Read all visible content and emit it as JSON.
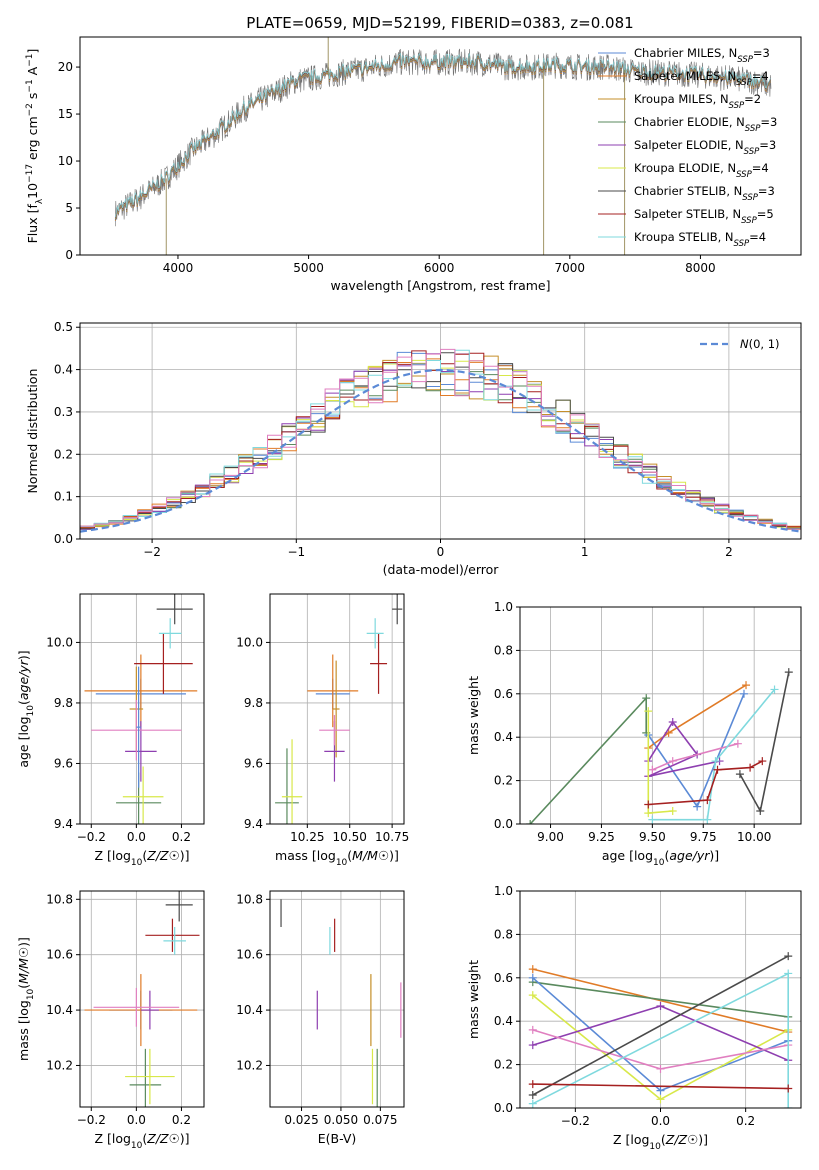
{
  "title": "PLATE=0659, MJD=52199, FIBERID=0383, z=0.081",
  "colors": {
    "Chabrier MILES": "#5b8ad6",
    "Salpeter MILES": "#e07b27",
    "Kroupa MILES": "#c58f2a",
    "Chabrier ELODIE": "#5a8a5e",
    "Salpeter ELODIE": "#8e3fb0",
    "Kroupa ELODIE": "#d8e84a",
    "Chabrier STELIB": "#4a4a4a",
    "Salpeter STELIB": "#a52020",
    "Kroupa STELIB": "#7fd9de",
    "extra_pink": "#e07fc0",
    "gauss": "#5b8ad6"
  },
  "chart_data": [
    {
      "id": "spectrum",
      "type": "line",
      "title": "PLATE=0659, MJD=52199, FIBERID=0383, z=0.081",
      "xlabel": "wavelength [Angstrom, rest frame]",
      "ylabel": "Flux [f_λ10^-17 erg cm^-2 s^-1 A^-1]",
      "xlim": [
        3250,
        8770
      ],
      "ylim": [
        0,
        23.2
      ],
      "xticks": [
        4000,
        5000,
        6000,
        7000,
        8000
      ],
      "yticks": [
        0,
        5,
        10,
        15,
        20
      ],
      "legend_position": "upper-right",
      "legend": [
        {
          "name": "Chabrier MILES",
          "sub": "3"
        },
        {
          "name": "Salpeter MILES",
          "sub": "4"
        },
        {
          "name": "Kroupa MILES",
          "sub": "2"
        },
        {
          "name": "Chabrier ELODIE",
          "sub": "3"
        },
        {
          "name": "Salpeter ELODIE",
          "sub": "3"
        },
        {
          "name": "Kroupa ELODIE",
          "sub": "4"
        },
        {
          "name": "Chabrier STELIB",
          "sub": "3"
        },
        {
          "name": "Salpeter STELIB",
          "sub": "5"
        },
        {
          "name": "Kroupa STELIB",
          "sub": "4"
        }
      ],
      "continuum": [
        [
          3520,
          4.5
        ],
        [
          3700,
          6
        ],
        [
          3900,
          8
        ],
        [
          4100,
          11
        ],
        [
          4300,
          13
        ],
        [
          4500,
          15.5
        ],
        [
          4700,
          17
        ],
        [
          4900,
          18.5
        ],
        [
          5100,
          19
        ],
        [
          5300,
          19.5
        ],
        [
          5500,
          20
        ],
        [
          5700,
          20.5
        ],
        [
          5900,
          20.5
        ],
        [
          6100,
          20.5
        ],
        [
          6300,
          20.5
        ],
        [
          6500,
          20
        ],
        [
          6700,
          20
        ],
        [
          6900,
          20.2
        ],
        [
          7100,
          20
        ],
        [
          7300,
          20
        ],
        [
          7500,
          19.5
        ],
        [
          7800,
          19.3
        ],
        [
          8100,
          19
        ],
        [
          8400,
          18.5
        ],
        [
          8540,
          18
        ]
      ],
      "spikes": [
        [
          5150,
          23.2
        ],
        [
          6800,
          0
        ],
        [
          7420,
          0
        ],
        [
          3910,
          0
        ]
      ],
      "noise_amplitude": 1.8
    },
    {
      "id": "residuals",
      "type": "histogram",
      "xlabel": "(data-model)/error",
      "ylabel": "Normed distribution",
      "xlim": [
        -2.5,
        2.5
      ],
      "ylim": [
        0,
        0.51
      ],
      "xticks": [
        -2,
        -1,
        0,
        1,
        2
      ],
      "yticks": [
        0.0,
        0.1,
        0.2,
        0.3,
        0.4,
        0.5
      ],
      "bin_width": 0.1,
      "gaussian_label": "N(0, 1)",
      "legend_position": "upper-right"
    },
    {
      "id": "age_vs_Z",
      "type": "errorbar",
      "xlabel": "Z [log10(Z/Z☉)]",
      "ylabel": "age [log10(age/yr)]",
      "xlim": [
        -0.25,
        0.3
      ],
      "ylim": [
        9.4,
        10.16
      ],
      "xticks": [
        -0.2,
        0.0,
        0.2
      ],
      "yticks": [
        9.4,
        9.6,
        9.8,
        10.0
      ],
      "points": [
        {
          "series": "Chabrier MILES",
          "x": 0.02,
          "xerr": 0.2,
          "y": 9.83,
          "yerr": 0.05
        },
        {
          "series": "Salpeter MILES",
          "x": 0.02,
          "xerr": 0.25,
          "y": 9.84,
          "yerr": 0.12
        },
        {
          "series": "Kroupa MILES",
          "x": 0.0,
          "xerr": 0.03,
          "y": 9.78,
          "yerr": 0.14
        },
        {
          "series": "Chabrier ELODIE",
          "x": 0.01,
          "xerr": 0.1,
          "y": 9.47,
          "yerr": 0.1
        },
        {
          "series": "Salpeter ELODIE",
          "x": 0.02,
          "xerr": 0.07,
          "y": 9.64,
          "yerr": 0.1
        },
        {
          "series": "Kroupa ELODIE",
          "x": 0.03,
          "xerr": 0.09,
          "y": 9.49,
          "yerr": 0.1
        },
        {
          "series": "Chabrier STELIB",
          "x": 0.17,
          "xerr": 0.08,
          "y": 10.11,
          "yerr": 0.05
        },
        {
          "series": "Salpeter STELIB",
          "x": 0.12,
          "xerr": 0.13,
          "y": 9.93,
          "yerr": 0.1
        },
        {
          "series": "Kroupa STELIB",
          "x": 0.15,
          "xerr": 0.05,
          "y": 10.03,
          "yerr": 0.05
        },
        {
          "series": "extra_pink",
          "x": 0.0,
          "xerr": 0.2,
          "y": 9.71,
          "yerr": 0.1
        },
        {
          "series": "Chabrier MILES",
          "x": 0.01,
          "xerr": 0.01,
          "y": 9.72,
          "yerr": 0.2
        }
      ]
    },
    {
      "id": "age_vs_mass",
      "type": "errorbar",
      "xlabel": "mass [log10(M/M☉)]",
      "xlim": [
        10.03,
        10.82
      ],
      "ylim": [
        9.4,
        10.16
      ],
      "xticks": [
        10.25,
        10.5,
        10.75
      ],
      "yticks": [
        9.4,
        9.6,
        9.8,
        10.0
      ],
      "points": [
        {
          "series": "Chabrier MILES",
          "x": 10.4,
          "xerr": 0.1,
          "y": 9.83,
          "yerr": 0.05
        },
        {
          "series": "Salpeter MILES",
          "x": 10.4,
          "xerr": 0.15,
          "y": 9.84,
          "yerr": 0.12
        },
        {
          "series": "Kroupa MILES",
          "x": 10.42,
          "xerr": 0.02,
          "y": 9.78,
          "yerr": 0.16
        },
        {
          "series": "Chabrier ELODIE",
          "x": 10.13,
          "xerr": 0.07,
          "y": 9.47,
          "yerr": 0.18
        },
        {
          "series": "Salpeter ELODIE",
          "x": 10.41,
          "xerr": 0.06,
          "y": 9.64,
          "yerr": 0.1
        },
        {
          "series": "Kroupa ELODIE",
          "x": 10.16,
          "xerr": 0.06,
          "y": 9.49,
          "yerr": 0.19
        },
        {
          "series": "Chabrier STELIB",
          "x": 10.78,
          "xerr": 0.03,
          "y": 10.11,
          "yerr": 0.05
        },
        {
          "series": "Salpeter STELIB",
          "x": 10.67,
          "xerr": 0.05,
          "y": 9.93,
          "yerr": 0.1
        },
        {
          "series": "Kroupa STELIB",
          "x": 10.65,
          "xerr": 0.05,
          "y": 10.03,
          "yerr": 0.05
        },
        {
          "series": "extra_pink",
          "x": 10.41,
          "xerr": 0.09,
          "y": 9.71,
          "yerr": 0.05
        }
      ]
    },
    {
      "id": "mass_weight_vs_age",
      "type": "line",
      "xlabel": "age [log10(age/yr)]",
      "ylabel": "mass weight",
      "xlim": [
        8.85,
        10.23
      ],
      "ylim": [
        0,
        1.0
      ],
      "xticks": [
        9.0,
        9.25,
        9.5,
        9.75,
        10.0
      ],
      "yticks": [
        0.0,
        0.2,
        0.4,
        0.6,
        0.8,
        1.0
      ],
      "series": [
        {
          "name": "Chabrier ELODIE",
          "points": [
            [
              8.9,
              0.0
            ],
            [
              9.47,
              0.58
            ],
            [
              9.47,
              0.42
            ]
          ]
        },
        {
          "name": "Salpeter MILES",
          "points": [
            [
              9.48,
              0.35
            ],
            [
              9.58,
              0.42
            ],
            [
              9.96,
              0.64
            ]
          ]
        },
        {
          "name": "Chabrier MILES",
          "points": [
            [
              9.48,
              0.41
            ],
            [
              9.72,
              0.08
            ],
            [
              9.95,
              0.6
            ]
          ]
        },
        {
          "name": "Salpeter ELODIE",
          "points": [
            [
              9.48,
              0.29
            ],
            [
              9.6,
              0.47
            ],
            [
              9.72,
              0.32
            ],
            [
              9.48,
              0.22
            ],
            [
              9.83,
              0.29
            ]
          ]
        },
        {
          "name": "extra_pink",
          "points": [
            [
              9.5,
              0.25
            ],
            [
              9.6,
              0.29
            ],
            [
              9.92,
              0.37
            ]
          ]
        },
        {
          "name": "Kroupa ELODIE",
          "points": [
            [
              9.48,
              0.52
            ],
            [
              9.48,
              0.05
            ],
            [
              9.6,
              0.06
            ]
          ]
        },
        {
          "name": "Kroupa STELIB",
          "points": [
            [
              9.5,
              0.02
            ],
            [
              9.77,
              0.02
            ],
            [
              9.81,
              0.29
            ],
            [
              10.1,
              0.62
            ]
          ]
        },
        {
          "name": "Chabrier STELIB",
          "points": [
            [
              9.93,
              0.23
            ],
            [
              10.03,
              0.06
            ],
            [
              10.17,
              0.7
            ]
          ]
        },
        {
          "name": "Salpeter STELIB",
          "points": [
            [
              9.48,
              0.09
            ],
            [
              9.77,
              0.11
            ],
            [
              9.82,
              0.25
            ],
            [
              9.98,
              0.26
            ],
            [
              10.04,
              0.29
            ]
          ]
        }
      ]
    },
    {
      "id": "mass_vs_Z",
      "type": "errorbar",
      "xlabel": "Z [log10(Z/Z☉)]",
      "ylabel": "mass [log10(M/M☉)]",
      "xlim": [
        -0.25,
        0.3
      ],
      "ylim": [
        10.05,
        10.83
      ],
      "xticks": [
        -0.2,
        0.0,
        0.2
      ],
      "yticks": [
        10.2,
        10.4,
        10.6,
        10.8
      ],
      "points": [
        {
          "series": "Chabrier MILES",
          "x": 0.02,
          "xerr": 0.14,
          "y": 10.4,
          "yerr": 0.07
        },
        {
          "series": "Salpeter MILES",
          "x": 0.02,
          "xerr": 0.25,
          "y": 10.4,
          "yerr": 0.13
        },
        {
          "series": "Chabrier ELODIE",
          "x": 0.04,
          "xerr": 0.07,
          "y": 10.13,
          "yerr": 0.13
        },
        {
          "series": "Salpeter ELODIE",
          "x": 0.06,
          "xerr": 0.04,
          "y": 10.4,
          "yerr": 0.07
        },
        {
          "series": "Kroupa ELODIE",
          "x": 0.06,
          "xerr": 0.11,
          "y": 10.16,
          "yerr": 0.1
        },
        {
          "series": "Chabrier STELIB",
          "x": 0.19,
          "xerr": 0.06,
          "y": 10.78,
          "yerr": 0.06
        },
        {
          "series": "Salpeter STELIB",
          "x": 0.16,
          "xerr": 0.12,
          "y": 10.67,
          "yerr": 0.06
        },
        {
          "series": "Kroupa STELIB",
          "x": 0.17,
          "xerr": 0.05,
          "y": 10.65,
          "yerr": 0.05
        },
        {
          "series": "extra_pink",
          "x": 0.0,
          "xerr": 0.19,
          "y": 10.41,
          "yerr": 0.07
        }
      ]
    },
    {
      "id": "mass_vs_ebv",
      "type": "errorbar",
      "xlabel": "E(B-V)",
      "xlim": [
        0.005,
        0.09
      ],
      "ylim": [
        10.05,
        10.83
      ],
      "xticks": [
        0.025,
        0.05,
        0.075
      ],
      "yticks": [
        10.2,
        10.4,
        10.6,
        10.8
      ],
      "points": [
        {
          "series": "Chabrier STELIB",
          "x": 0.012,
          "y": 10.75,
          "yerr": 0.05
        },
        {
          "series": "Salpeter ELODIE",
          "x": 0.035,
          "y": 10.4,
          "yerr": 0.07
        },
        {
          "series": "Kroupa STELIB",
          "x": 0.043,
          "y": 10.65,
          "yerr": 0.05
        },
        {
          "series": "Salpeter STELIB",
          "x": 0.046,
          "y": 10.67,
          "yerr": 0.06
        },
        {
          "series": "Kroupa MILES",
          "x": 0.069,
          "y": 10.4,
          "yerr": 0.13
        },
        {
          "series": "Kroupa ELODIE",
          "x": 0.07,
          "y": 10.16,
          "yerr": 0.1
        },
        {
          "series": "Chabrier ELODIE",
          "x": 0.073,
          "y": 10.13,
          "yerr": 0.13
        },
        {
          "series": "extra_pink",
          "x": 0.088,
          "y": 10.4,
          "yerr": 0.1
        }
      ]
    },
    {
      "id": "mass_weight_vs_Z",
      "type": "line",
      "xlabel": "Z [log10(Z/Z☉)]",
      "ylabel": "mass weight",
      "xlim": [
        -0.33,
        0.33
      ],
      "ylim": [
        0,
        1.0
      ],
      "xticks": [
        -0.2,
        0.0,
        0.2
      ],
      "yticks": [
        0.0,
        0.2,
        0.4,
        0.6,
        0.8,
        1.0
      ],
      "series": [
        {
          "name": "Salpeter MILES",
          "points": [
            [
              -0.3,
              0.64
            ],
            [
              0.3,
              0.35
            ]
          ]
        },
        {
          "name": "Chabrier ELODIE",
          "points": [
            [
              -0.3,
              0.58
            ],
            [
              0.3,
              0.42
            ]
          ]
        },
        {
          "name": "Chabrier MILES",
          "points": [
            [
              -0.3,
              0.6
            ],
            [
              0.0,
              0.08
            ],
            [
              0.3,
              0.31
            ]
          ]
        },
        {
          "name": "Kroupa ELODIE",
          "points": [
            [
              -0.3,
              0.52
            ],
            [
              0.0,
              0.04
            ],
            [
              0.3,
              0.36
            ]
          ]
        },
        {
          "name": "Salpeter ELODIE",
          "points": [
            [
              -0.3,
              0.29
            ],
            [
              0.0,
              0.47
            ],
            [
              0.3,
              0.22
            ]
          ]
        },
        {
          "name": "extra_pink",
          "points": [
            [
              -0.3,
              0.36
            ],
            [
              0.0,
              0.18
            ],
            [
              0.3,
              0.29
            ]
          ]
        },
        {
          "name": "Chabrier STELIB",
          "points": [
            [
              -0.3,
              0.06
            ],
            [
              0.3,
              0.7
            ]
          ]
        },
        {
          "name": "Kroupa STELIB",
          "points": [
            [
              -0.3,
              0.02
            ],
            [
              0.3,
              0.62
            ],
            [
              0.3,
              0.0
            ]
          ]
        },
        {
          "name": "Salpeter STELIB",
          "points": [
            [
              -0.3,
              0.11
            ],
            [
              0.3,
              0.09
            ]
          ]
        }
      ]
    }
  ]
}
